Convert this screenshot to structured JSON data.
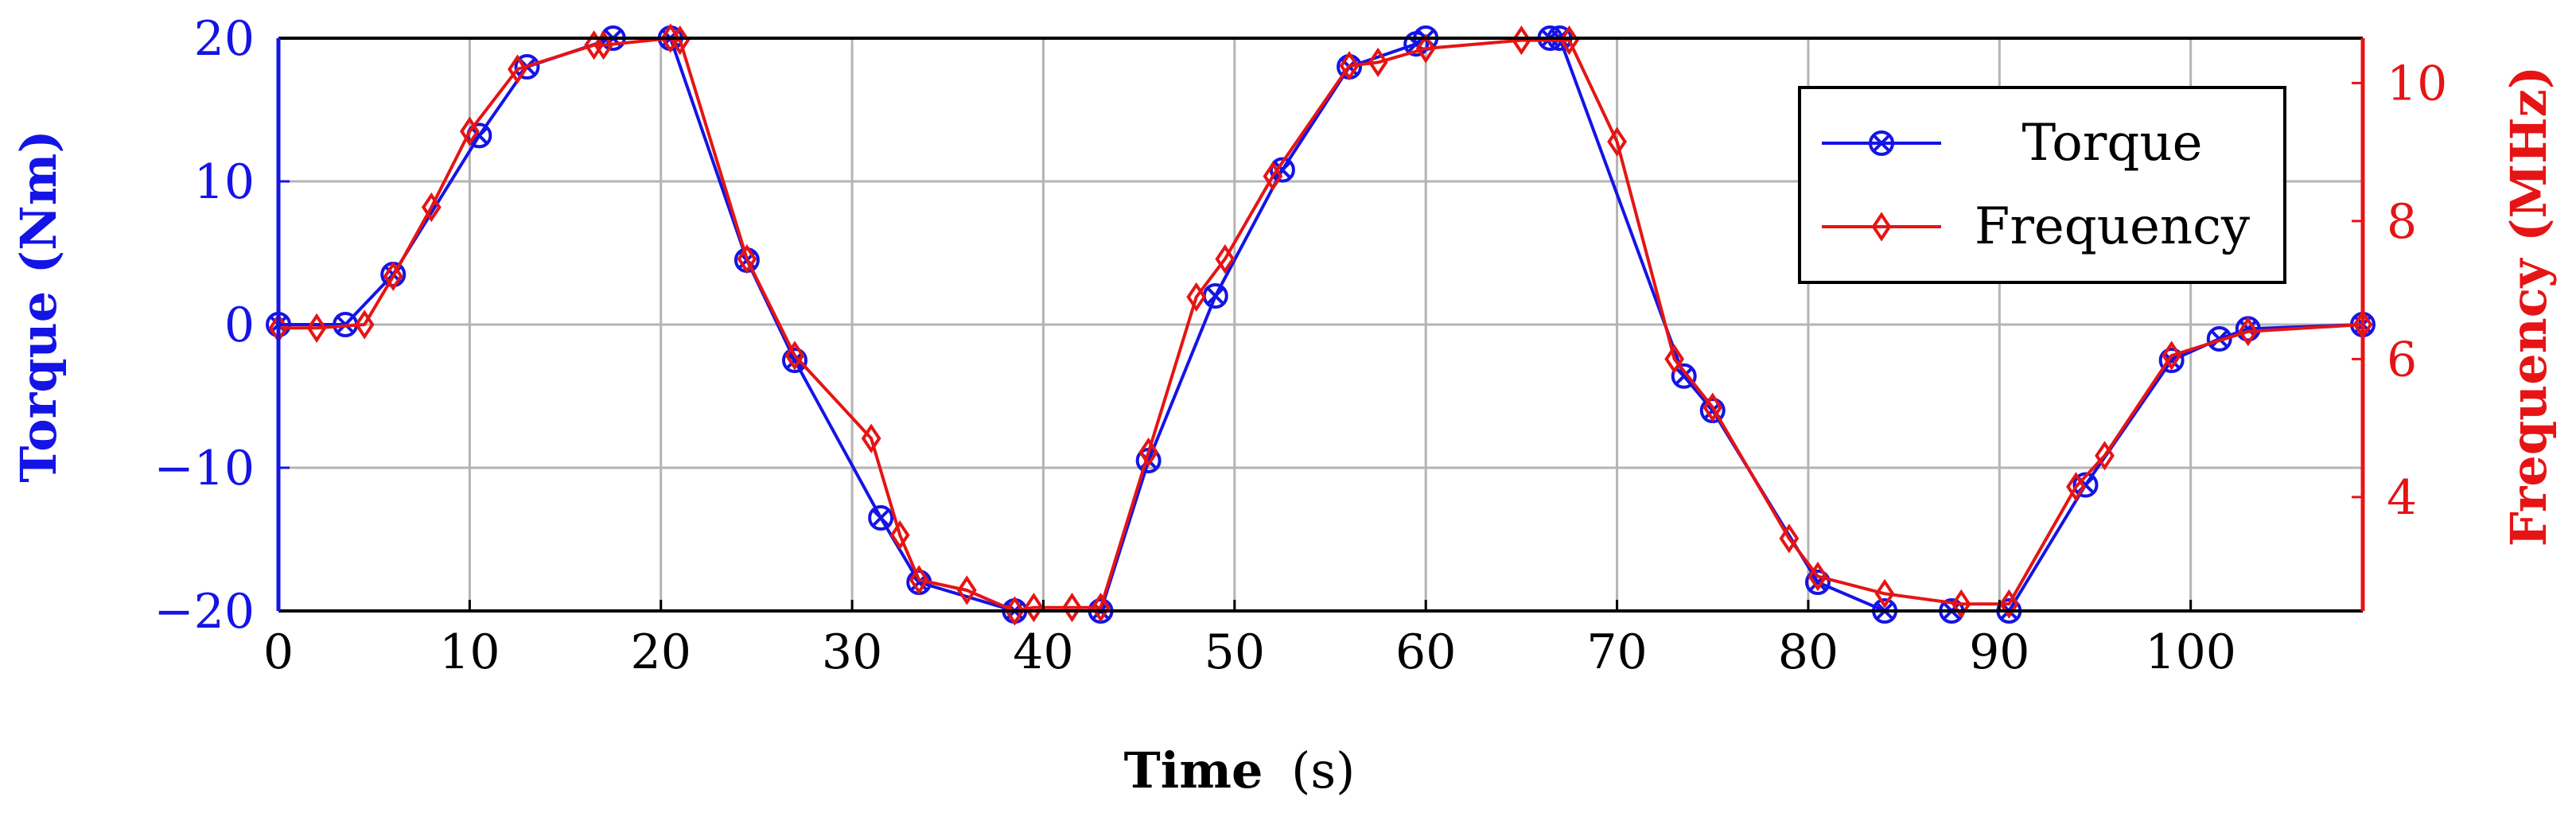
{
  "chart_data": {
    "type": "line",
    "xlabel_bold": "Time",
    "xlabel_unit": "(s)",
    "ylabel_left": "Torque (Nm)",
    "ylabel_right": "Frequency (MHz)",
    "xlim": [
      0,
      109
    ],
    "ylim_left": [
      -20,
      20
    ],
    "ylim_right": [
      2.35,
      10.65
    ],
    "grid": true,
    "legend_position": "top-right",
    "x_ticks": [
      "0",
      "10",
      "20",
      "30",
      "40",
      "50",
      "60",
      "70",
      "80",
      "90",
      "100"
    ],
    "y_left_ticks": [
      "−20",
      "−10",
      "0",
      "10",
      "20"
    ],
    "y_right_ticks": [
      "4",
      "6",
      "8",
      "10"
    ],
    "colors": {
      "torque": "#1414e6",
      "frequency": "#e61414",
      "grid": "#b4b4b4"
    },
    "series": [
      {
        "name": "Torque",
        "axis": "left",
        "marker": "circle-x",
        "x": [
          0,
          3.5,
          6,
          10.5,
          13,
          17.5,
          20.5,
          24.5,
          27,
          31.5,
          33.5,
          38.5,
          43,
          45.5,
          49,
          52.5,
          56,
          59.5,
          60,
          66.5,
          67,
          73.5,
          75,
          80.5,
          84,
          87.5,
          90.5,
          94.5,
          99,
          101.5,
          103,
          109
        ],
        "y": [
          0,
          0,
          3.5,
          13.2,
          18,
          20,
          20,
          4.5,
          -2.5,
          -13.5,
          -18,
          -20,
          -20,
          -9.5,
          2,
          10.8,
          18,
          19.6,
          20,
          20,
          20,
          -3.6,
          -6,
          -18,
          -20,
          -20,
          -20,
          -11.2,
          -2.5,
          -1,
          -0.3,
          0
        ]
      },
      {
        "name": "Frequency",
        "axis": "right",
        "marker": "diamond",
        "x": [
          0,
          2,
          4.5,
          6,
          8,
          10,
          12.5,
          16.5,
          17,
          20.5,
          21,
          24.5,
          27,
          31,
          32.5,
          33.5,
          36,
          38.5,
          39.5,
          41.5,
          43,
          45.5,
          48,
          49.5,
          52,
          56,
          57.5,
          60,
          65,
          67.5,
          70,
          73,
          75,
          79,
          80.5,
          84,
          88,
          90.5,
          94,
          95.5,
          99,
          103,
          109
        ],
        "y": [
          6.45,
          6.45,
          6.5,
          7.2,
          8.2,
          9.3,
          10.2,
          10.55,
          10.55,
          10.65,
          10.62,
          7.45,
          6.05,
          4.85,
          3.45,
          2.8,
          2.65,
          2.35,
          2.4,
          2.4,
          2.4,
          4.65,
          6.9,
          7.45,
          8.65,
          10.25,
          10.3,
          10.5,
          10.62,
          10.62,
          9.15,
          6,
          5.3,
          3.4,
          2.85,
          2.6,
          2.45,
          2.45,
          4.15,
          4.6,
          6.05,
          6.4,
          6.5
        ]
      }
    ]
  }
}
